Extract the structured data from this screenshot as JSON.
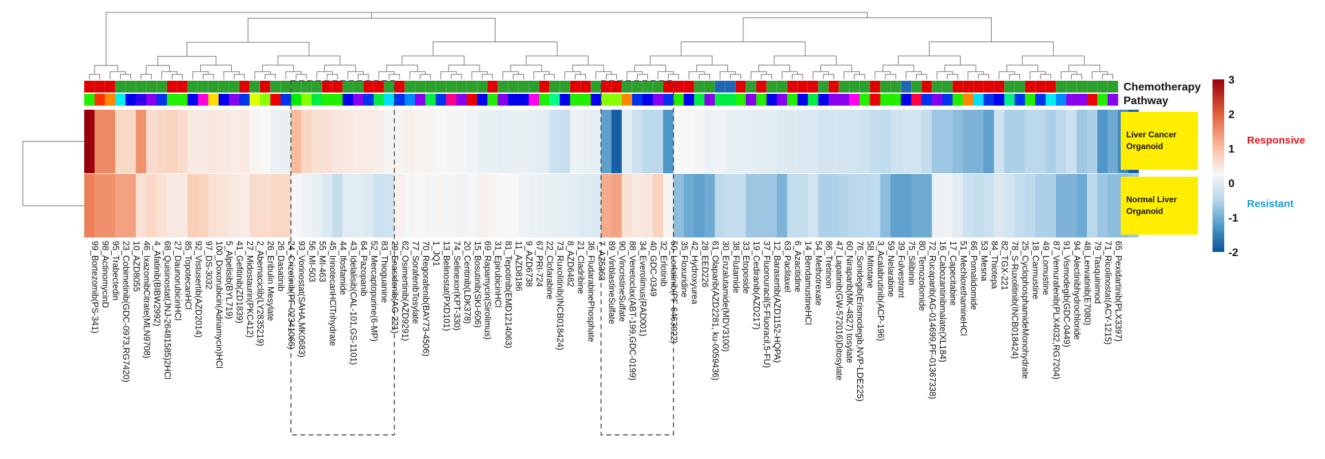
{
  "chart_data": {
    "type": "heatmap",
    "title": "",
    "rows": [
      "Liver Cancer Organoid",
      "Normal Liver Organoid"
    ],
    "row_label_boxes": [
      "Liver Cancer\nOrganoid",
      "Normal Liver\nOrganoid"
    ],
    "annotation_tracks": [
      "Chemotherapy",
      "Pathway"
    ],
    "colorbar": {
      "ticks": [
        3,
        2,
        1,
        0,
        -1,
        -2
      ],
      "range": [
        -2,
        3
      ],
      "low_color": "#08519c",
      "mid_color": "#f7f7f7",
      "high_color": "#99000d"
    },
    "legend_labels": [
      {
        "text": "Responsive",
        "color": "#e8141c"
      },
      {
        "text": "Resistant",
        "color": "#1a9bd7"
      }
    ],
    "highlight_boxes": [
      {
        "from": "93_Vorinostat(SAHA,MK0683)",
        "to": "29_Enasidenib(AG-221)"
      },
      {
        "from": "89_VinblastineSulfate",
        "to": "50_Lorlatinib(PF-6463922)"
      }
    ],
    "columns": [
      "99_Bortezomib(PS-341)",
      "98_ActinomycinD",
      "95_Trabectedin",
      "23_Cobimetinib(GDC-0973,RG7420)",
      "10_AZD8055",
      "46_IxazomibCitrate(MLN9708)",
      "4_Afatinib(BIBW2992)",
      "68_Quisinostat(JNJ-26481585)2HCl",
      "27_DaunorubicinHCl",
      "85_TopotecanHCl",
      "92_Vistusertib(AZD2014)",
      "97_DS-3032",
      "100_Doxorubicin(Adriamycin)HCl",
      "5_Alpelisib(BYL719)",
      "41_Gefitinib(ZD1839)",
      "27_Midostaurin(PKC412)",
      "2_Abemaciclib(LY2835219)",
      "26_Eribulin Mesylate",
      "26_Dasatinib",
      "24_Crizotinib(PF-02341066)",
      "93_Vorinostat(SAHA,MK0683)",
      "56_MI-503",
      "55_MI-463",
      "45_IrinotecanHClTrihydrate",
      "44_Ifosfamide",
      "43_Idelalisib(CAL-101,GS-1101)",
      "64_Pazopanib",
      "52_Mercaptopurine(6-MP)",
      "83_Thioguanine",
      "29_Enasidenib(AG-221)",
      "62_Osimertinib(AZD9291)",
      "77_SorafenibTosylate",
      "70_Regorafenib(BAY73-4506)",
      "1_JQ1",
      "13_Belinostat(PXD101)",
      "74_Selinexor(KPT-330)",
      "20_Ceritinib(LDK378)",
      "15_Bosutinib(SKI-606)",
      "69_Rapamycin(Sirolimus)",
      "31_EpirubicinHCl",
      "81_Tepotinib(EMD1214063)",
      "11_AZD8186",
      "9_AZD6738",
      "67_PRI-724",
      "22_Clofarabine",
      "73_Ruxolitinib(INCB018424)",
      "8_AZD6482",
      "21_Cladribine",
      "36_FludarabinePhosphate",
      "7_AZ5363",
      "89_VinblastineSulfate",
      "90_VincristineSulfate",
      "88_Venetoclax(ABT-199,GDC-0199)",
      "34_Everolimus(RAD001)",
      "40_GDC-0349",
      "32_Erlotinib",
      "50_Lorlatinib(PF-6463922)",
      "35_Floxuridine",
      "42_Hydroxyurea",
      "28_EED226",
      "61_Olaparib(AZD2281, ku-0059436)",
      "30_Enzalutamide(MDV3100)",
      "38_Flutamide",
      "33_Etoposide",
      "19_Cediranib(AZD217)",
      "37_Fluorouracil(5-Fluoracil,5-FU)",
      "12_Barasertib(AZD1152-HQPA)",
      "63_Paclitaxel",
      "6_Azacitidine",
      "14_BendamustineHCl",
      "54_Methotrexate",
      "86_Tretinoin",
      "47_Lapatinib(GW-572016)Ditosylate",
      "60_Niraparib(MK-4827) tosylate",
      "76_Sonidegib(Erismodegib,NVP-LDE225)",
      "58_Mitotane",
      "3_Acalabrutinib(ACP-196)",
      "59_Nelarabine",
      "39_Fulvestrant",
      "75_Silibinin",
      "80_Temozolomide",
      "72_Rucaparib(AG-014699,PF-01367338)",
      "16_Cabozantinibmalate(XL184)",
      "17_Capecitabine",
      "51_MechlorethamineHCl",
      "66_Pomalidomide",
      "53_Mesna",
      "84_Thiotepa",
      "82_TGX-221",
      "78_S-Ruxolitinib(INCB018424)",
      "25_CyclophosphamideMonohydrate",
      "18_Carmustine",
      "49_Lomustine",
      "87_Vemurafenib(PLX4032,RG7204)",
      "91_Vismodegib(GDC-0449)",
      "94_Alectinibhydrochloride",
      "48_Lenvatinib(E7080)",
      "79_Tasquinimod",
      "71_Ricolinostat(ACY-1215)",
      "65_Pexidartinib(PLX3397)"
    ],
    "values": [
      [
        3.0,
        1.8,
        1.8,
        0.7,
        0.7,
        1.7,
        0.6,
        0.7,
        0.8,
        0.6,
        0.3,
        0.3,
        0.35,
        0.3,
        0.25,
        0.3,
        0.1,
        0.0,
        -0.15,
        -0.2,
        1.2,
        0.7,
        0.5,
        0.5,
        0.35,
        0.3,
        0.25,
        0.25,
        0.2,
        0.05,
        0.1,
        0.2,
        0.1,
        0.1,
        0.0,
        -0.05,
        -0.05,
        -0.1,
        -0.2,
        -0.2,
        -0.25,
        -0.2,
        -0.2,
        -0.25,
        -0.3,
        -0.6,
        -0.65,
        -0.15,
        -0.2,
        -0.25,
        -1.4,
        -1.9,
        -0.3,
        -0.6,
        -0.8,
        -0.8,
        -1.5,
        0.0,
        0.0,
        -0.05,
        -0.15,
        -0.1,
        -0.2,
        -0.25,
        -0.25,
        -0.3,
        -0.3,
        -0.35,
        -0.35,
        -0.4,
        -0.4,
        -0.5,
        -0.45,
        -0.5,
        -0.5,
        -0.55,
        -0.7,
        -0.75,
        -0.55,
        -0.5,
        -0.5,
        -0.7,
        -1.0,
        -1.0,
        -1.1,
        -1.2,
        -1.2,
        -1.4,
        -0.55,
        -0.9,
        -0.9,
        -0.8,
        -0.8,
        -0.9,
        -0.8,
        -0.6,
        -1.0,
        -0.9,
        -1.5,
        -1.3,
        -1.6,
        -1.9
      ],
      [
        1.9,
        1.7,
        1.7,
        1.5,
        1.5,
        0.5,
        0.7,
        0.5,
        0.3,
        0.3,
        0.9,
        0.8,
        0.5,
        0.45,
        0.3,
        0.25,
        0.6,
        0.6,
        0.7,
        0.7,
        0.0,
        -0.1,
        -0.2,
        -0.4,
        -0.7,
        -0.3,
        -0.3,
        -0.35,
        -0.6,
        -0.55,
        0.15,
        -0.05,
        0.0,
        -0.05,
        0.05,
        -0.05,
        -0.1,
        -0.05,
        0.15,
        0.1,
        0.0,
        0.0,
        -0.1,
        -0.15,
        -0.2,
        -0.2,
        -0.25,
        -0.3,
        -0.35,
        -0.4,
        1.4,
        1.5,
        0.5,
        0.3,
        0.4,
        0.8,
        0.1,
        -1.1,
        -1.3,
        -1.4,
        -1.3,
        -0.8,
        -0.7,
        -0.7,
        -1.0,
        -1.0,
        -1.0,
        -1.2,
        -0.7,
        -0.7,
        -0.5,
        -0.9,
        -0.9,
        -0.85,
        -0.8,
        -0.8,
        -0.75,
        -1.1,
        -1.4,
        -1.4,
        -1.3,
        -1.3,
        -0.15,
        -0.1,
        -0.3,
        -0.6,
        -0.7,
        -0.6,
        -0.4,
        -0.5,
        -0.7,
        -0.8,
        -0.9,
        -0.9,
        -1.2,
        -1.2,
        -1.3,
        -0.8,
        -1.0,
        -1.1,
        -1.1,
        -1.0
      ]
    ],
    "chemotherapy_colors": [
      "#e00000",
      "#e00000",
      "#e00000",
      "#2ca02c",
      "#2ca02c",
      "#2ca02c",
      "#2ca02c",
      "#2ca02c",
      "#e00000",
      "#e00000",
      "#2ca02c",
      "#2ca02c",
      "#2ca02c",
      "#2ca02c",
      "#2ca02c",
      "#e00000",
      "#2ca02c",
      "#e00000",
      "#2ca02c",
      "#2ca02c",
      "#2ca02c",
      "#2ca02c",
      "#2ca02c",
      "#e00000",
      "#e00000",
      "#2ca02c",
      "#2ca02c",
      "#e00000",
      "#e00000",
      "#2ca02c",
      "#e00000",
      "#2ca02c",
      "#2ca02c",
      "#2ca02c",
      "#2ca02c",
      "#2ca02c",
      "#2ca02c",
      "#2ca02c",
      "#2ca02c",
      "#e00000",
      "#2ca02c",
      "#2ca02c",
      "#2ca02c",
      "#2ca02c",
      "#e00000",
      "#2ca02c",
      "#2ca02c",
      "#e00000",
      "#e00000",
      "#2ca02c",
      "#e00000",
      "#e00000",
      "#2ca02c",
      "#2ca02c",
      "#2ca02c",
      "#2ca02c",
      "#e00000",
      "#e00000",
      "#e00000",
      "#2ca02c",
      "#2ca02c",
      "#1f67b4",
      "#1f67b4",
      "#e00000",
      "#2ca02c",
      "#e00000",
      "#2ca02c",
      "#2ca02c",
      "#e00000",
      "#e00000",
      "#e00000",
      "#2ca02c",
      "#e00000",
      "#2ca02c",
      "#2ca02c",
      "#2ca02c",
      "#e00000",
      "#2ca02c",
      "#2ca02c",
      "#1f67b4",
      "#2ca02c",
      "#e00000",
      "#2ca02c",
      "#2ca02c",
      "#e00000",
      "#e00000",
      "#e00000",
      "#e00000",
      "#e00000",
      "#2ca02c",
      "#2ca02c",
      "#e00000",
      "#e00000",
      "#e00000",
      "#2ca02c",
      "#2ca02c",
      "#2ca02c",
      "#2ca02c",
      "#2ca02c",
      "#2ca02c"
    ],
    "pathway_colors": [
      "#22ee00",
      "#ff3300",
      "#ff8800",
      "#00eeee",
      "#0000ee",
      "#3300ee",
      "#8800ee",
      "#0033ee",
      "#22ee00",
      "#22ee00",
      "#0000ee",
      "#ff00dd",
      "#ffdd00",
      "#0000ee",
      "#8800ee",
      "#0033ee",
      "#ddff00",
      "#88ff00",
      "#ee0000",
      "#0033ee",
      "#00ee00",
      "#88ff00",
      "#00ee44",
      "#22ee00",
      "#22ee00",
      "#0000ee",
      "#8800ee",
      "#0033ee",
      "#00ee44",
      "#00ddff",
      "#0033ee",
      "#0088ff",
      "#8800ee",
      "#00ee44",
      "#0033ee",
      "#ff0088",
      "#8800ee",
      "#ee0000",
      "#0000ee",
      "#22ee00",
      "#8800ee",
      "#0000ee",
      "#0000ee",
      "#ff00ee",
      "#22ee00",
      "#00ff88",
      "#0000ee",
      "#22ee00",
      "#22ee00",
      "#0000ee",
      "#88ff00",
      "#88ff00",
      "#ff8800",
      "#0033ee",
      "#0000ee",
      "#8800ee",
      "#0033ee",
      "#22ee00",
      "#0000ee",
      "#00ee44",
      "#8800ee",
      "#00ee44",
      "#00ee44",
      "#22ee00",
      "#8800ee",
      "#22ee00",
      "#0000ee",
      "#8800ee",
      "#22ee00",
      "#0000ee",
      "#00ee44",
      "#0000ee",
      "#8800ee",
      "#8800ee",
      "#ff00ee",
      "#22ee00",
      "#ee0000",
      "#22ee00",
      "#22ee00",
      "#0000ee",
      "#ff0044",
      "#0033ee",
      "#8800ee",
      "#0033ee",
      "#22ee00",
      "#ff8800",
      "#00ddff",
      "#0033ee",
      "#0000ee",
      "#00ee88",
      "#0033ee",
      "#22ee00",
      "#0033ee",
      "#00eeee",
      "#0088ff",
      "#8800ee",
      "#8800ee",
      "#ee0000",
      "#22ee00",
      "#8800ee"
    ]
  }
}
